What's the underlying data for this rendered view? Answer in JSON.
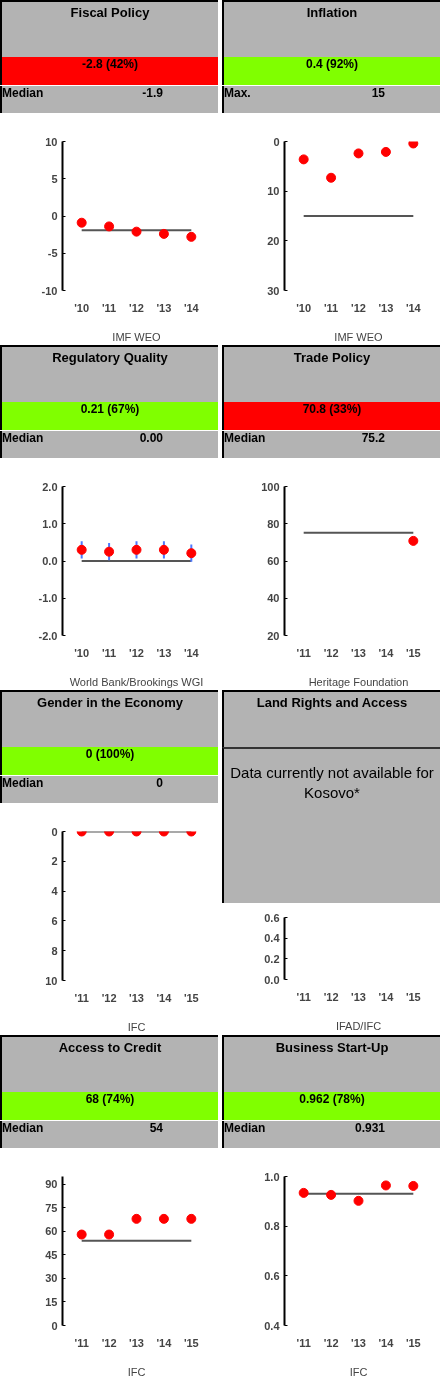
{
  "chart_data": [
    {
      "type": "scatter",
      "title": "Fiscal Policy",
      "subtitle": "-2.8 (42%)",
      "color": "#ff0000",
      "categories": [
        "'10",
        "'11",
        "'12",
        "'13",
        "'14"
      ],
      "series": [
        {
          "color": "#ff0000",
          "values": [
            -0.9,
            -1.4,
            -2.1,
            -2.4,
            -2.8
          ]
        }
      ],
      "ylim": [
        -10,
        10
      ],
      "yticks": [
        -10,
        -5,
        0,
        5,
        10
      ],
      "marker": "circle",
      "ref_lines": [
        {
          "axis": "y",
          "value": -1.9,
          "color": "#555555"
        }
      ],
      "annotations": [
        "Median",
        "-1.9",
        "IMF WEO"
      ]
    },
    {
      "type": "scatter",
      "title": "Inflation",
      "subtitle": "0.4 (92%)",
      "color": "#80ff00",
      "categories": [
        "'10",
        "'11",
        "'12",
        "'13",
        "'14"
      ],
      "series": [
        {
          "color": "#ff0000",
          "values": [
            3.6,
            7.3,
            2.4,
            2.1,
            0.4
          ]
        }
      ],
      "ylim": [
        30,
        0
      ],
      "yticks": [
        0,
        10,
        20,
        30
      ],
      "marker": "circle",
      "ref_lines": [
        {
          "axis": "y",
          "value": 15,
          "color": "#555555"
        }
      ],
      "annotations": [
        "Max.",
        "15",
        "IMF WEO"
      ]
    },
    {
      "type": "scatter",
      "title": "Regulatory Quality",
      "subtitle": "0.21 (67%)",
      "color": "#80ff00",
      "categories": [
        "'10",
        "'11",
        "'12",
        "'13",
        "'14"
      ],
      "series": [
        {
          "color": "#ff0000",
          "values": [
            0.3,
            0.25,
            0.3,
            0.3,
            0.21
          ],
          "errors": [
            0.23,
            0.23,
            0.23,
            0.23,
            0.23
          ]
        }
      ],
      "ylim": [
        -2,
        2
      ],
      "yticks": [
        {
          "value": -2,
          "label": "-2.0"
        },
        {
          "value": -1,
          "label": "-1.0"
        },
        {
          "value": 0,
          "label": "0.0"
        },
        {
          "value": 1,
          "label": "1.0"
        },
        {
          "value": 2,
          "label": "2.0"
        }
      ],
      "marker": "circle",
      "ref_lines": [
        {
          "axis": "y",
          "value": 0,
          "color": "#555555"
        }
      ],
      "annotations": [
        "Median",
        "0.00",
        "World Bank/Brookings WGI"
      ]
    },
    {
      "type": "scatter",
      "title": "Trade Policy",
      "subtitle": "70.8 (33%)",
      "color": "#ff0000",
      "categories": [
        "'11",
        "'12",
        "'13",
        "'14",
        "'15"
      ],
      "series": [
        {
          "color": "#ff0000",
          "values": [
            null,
            null,
            null,
            null,
            70.8
          ]
        }
      ],
      "ylim": [
        20,
        100
      ],
      "yticks": [
        20,
        40,
        60,
        80,
        100
      ],
      "marker": "circle",
      "ref_lines": [
        {
          "axis": "y",
          "value": 75.2,
          "color": "#555555"
        }
      ],
      "annotations": [
        "Median",
        "75.2",
        "Heritage Foundation"
      ]
    },
    {
      "type": "scatter",
      "title": "Gender in the Economy",
      "subtitle": "0 (100%)",
      "color": "#80ff00",
      "categories": [
        "'11",
        "'12",
        "'13",
        "'14",
        "'15"
      ],
      "series": [
        {
          "color": "#ff0000",
          "values": [
            0,
            0,
            0,
            0,
            0
          ]
        }
      ],
      "ylim": [
        10,
        0
      ],
      "yticks": [
        0,
        2,
        4,
        6,
        8,
        10
      ],
      "marker": "circle",
      "ref_lines": [
        {
          "axis": "y",
          "value": 0,
          "color": "#555555"
        }
      ],
      "annotations": [
        "Median",
        "0",
        "IFC"
      ]
    },
    {
      "type": "scatter",
      "title": "Land Rights and Access",
      "categories": [
        "'11",
        "'12",
        "'13",
        "'14",
        "'15"
      ],
      "ylim": [
        0,
        0.6
      ],
      "yticks": [
        {
          "value": 0,
          "label": "0.0"
        },
        {
          "value": 0.2,
          "label": "0.2"
        },
        {
          "value": 0.4,
          "label": "0.4"
        },
        {
          "value": 0.6,
          "label": "0.6"
        }
      ],
      "marker": "circle",
      "annotations": [
        "Data currently not available for Kosovo*",
        "IFAD/IFC"
      ]
    },
    {
      "type": "scatter",
      "title": "Access to Credit",
      "subtitle": "68 (74%)",
      "color": "#80ff00",
      "categories": [
        "'11",
        "'12",
        "'13",
        "'14",
        "'15"
      ],
      "series": [
        {
          "color": "#ff0000",
          "values": [
            58,
            58,
            68,
            68,
            68
          ]
        }
      ],
      "ylim": [
        0,
        95
      ],
      "yticks": [
        0,
        15,
        30,
        45,
        60,
        75,
        90
      ],
      "marker": "circle",
      "ref_lines": [
        {
          "axis": "y",
          "value": 54,
          "color": "#555555"
        }
      ],
      "annotations": [
        "Median",
        "54",
        "IFC"
      ]
    },
    {
      "type": "scatter",
      "title": "Business Start-Up",
      "subtitle": "0.962 (78%)",
      "color": "#80ff00",
      "categories": [
        "'11",
        "'12",
        "'13",
        "'14",
        "'15"
      ],
      "series": [
        {
          "color": "#ff0000",
          "values": [
            0.934,
            0.926,
            0.902,
            0.964,
            0.962
          ]
        }
      ],
      "ylim": [
        0.4,
        1.0
      ],
      "yticks": [
        {
          "value": 0.4,
          "label": "0.4"
        },
        {
          "value": 0.6,
          "label": "0.6"
        },
        {
          "value": 0.8,
          "label": "0.8"
        },
        {
          "value": 1.0,
          "label": "1.0"
        }
      ],
      "marker": "circle",
      "ref_lines": [
        {
          "axis": "y",
          "value": 0.931,
          "color": "#555555"
        }
      ],
      "annotations": [
        "Median",
        "0.931",
        "IFC"
      ]
    }
  ]
}
